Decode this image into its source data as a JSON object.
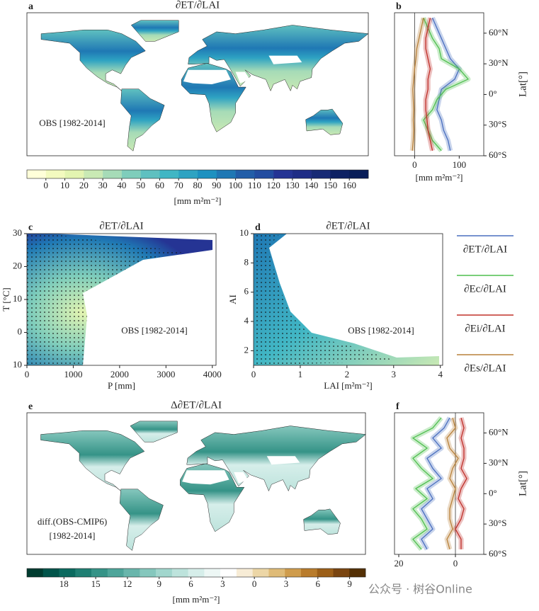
{
  "chart_data": [
    {
      "type": "map",
      "label": "a",
      "title": "∂ET/∂LAI",
      "annotation": "OBS [1982-2014]",
      "colorbar": {
        "lim": [
          -10,
          170
        ],
        "ticks": [
          0,
          10,
          20,
          30,
          40,
          50,
          60,
          70,
          80,
          90,
          100,
          110,
          120,
          130,
          140,
          150,
          160
        ],
        "colors": [
          "#ffffd9",
          "#f3fabf",
          "#e3f4b1",
          "#c9e9b4",
          "#a6dbb7",
          "#7fcdbb",
          "#5fc0c0",
          "#41b6c4",
          "#2ea3c2",
          "#1d91c0",
          "#1f78b4",
          "#225ea8",
          "#234da0",
          "#253494",
          "#1f2d86",
          "#172a75",
          "#0d2163",
          "#081d58"
        ],
        "label": "[mm m²m⁻²]"
      }
    },
    {
      "type": "profile",
      "label": "b",
      "xlim": [
        -45,
        155
      ],
      "xticks": [
        0,
        100
      ],
      "xlabel": "[mm m²m⁻²]",
      "ylim": [
        -60,
        80
      ],
      "yticks": [
        {
          "value": 60,
          "label": "60°N"
        },
        {
          "value": 30,
          "label": "30°N"
        },
        {
          "value": 0,
          "label": "0°"
        },
        {
          "value": -30,
          "label": "30°S"
        },
        {
          "value": -60,
          "label": "60°S"
        }
      ],
      "ylabel": "Lat[°]",
      "lat": [
        -55,
        -45,
        -35,
        -25,
        -15,
        -5,
        5,
        15,
        25,
        35,
        45,
        55,
        65,
        75
      ],
      "series": [
        {
          "name": "∂ET/∂LAI",
          "color": "#4a6fbf",
          "values": [
            80,
            75,
            65,
            60,
            50,
            55,
            60,
            90,
            100,
            80,
            70,
            60,
            50,
            40
          ]
        },
        {
          "name": "∂Ec/∂LAI",
          "color": "#4fbf4f",
          "values": [
            60,
            40,
            30,
            20,
            40,
            50,
            70,
            120,
            100,
            60,
            55,
            40,
            30,
            20
          ]
        },
        {
          "name": "∂Ei/∂LAI",
          "color": "#c0302a",
          "values": [
            40,
            35,
            30,
            28,
            25,
            25,
            30,
            30,
            35,
            30,
            25,
            25,
            30,
            35
          ]
        },
        {
          "name": "∂Es/∂LAI",
          "color": "#b8813a",
          "values": [
            -5,
            -3,
            -2,
            -3,
            -2,
            -3,
            -4,
            -2,
            0,
            3,
            5,
            10,
            15,
            20
          ]
        }
      ]
    },
    {
      "type": "heatmap",
      "label": "c",
      "title": "∂ET/∂LAI",
      "annotation": "OBS [1982-2014]",
      "xlim": [
        0,
        4080
      ],
      "xticks": [
        0,
        1000,
        2000,
        3000,
        4000
      ],
      "xlabel": "P [mm]",
      "ylim": [
        -10,
        30
      ],
      "yticks": [
        {
          "value": -10,
          "label": "10"
        },
        0,
        10,
        20,
        30
      ],
      "ylabel": "T [°C]"
    },
    {
      "type": "heatmap",
      "label": "d",
      "title": "∂ET/∂LAI",
      "annotation": "OBS [1982-2014]",
      "xlim": [
        0,
        4.05
      ],
      "xticks": [
        0,
        1,
        2,
        3,
        4
      ],
      "xlabel": "LAI [m²m⁻²]",
      "ylim": [
        1,
        10
      ],
      "yticks": [
        2,
        4,
        6,
        8,
        10
      ],
      "ylabel": "AI"
    },
    {
      "type": "map",
      "label": "e",
      "title": "Δ∂ET/∂LAI",
      "annotation": [
        "diff.(OBS-CMIP6)",
        "[1982-2014]"
      ],
      "colorbar": {
        "lim": [
          -21.5,
          10.5
        ],
        "ticks": [
          {
            "value": -18,
            "label": "18"
          },
          {
            "value": -15,
            "label": "15"
          },
          {
            "value": -12,
            "label": "12"
          },
          {
            "value": -9,
            "label": "9"
          },
          {
            "value": -6,
            "label": "6"
          },
          {
            "value": -3,
            "label": "3"
          },
          0,
          3,
          6,
          9
        ],
        "colors": [
          "#003c30",
          "#01544a",
          "#0b6a5f",
          "#1f7f73",
          "#359387",
          "#4ea59a",
          "#69b6ac",
          "#85c7bd",
          "#a1d6cd",
          "#bde3dc",
          "#d6eeea",
          "#edf7f5",
          "#ffffff",
          "#f7ecd6",
          "#ecd6a6",
          "#dfbb77",
          "#cf9c4c",
          "#b97c2c",
          "#9c5f18",
          "#7a4510",
          "#543005"
        ],
        "label": "[mm m²m⁻²]"
      }
    },
    {
      "type": "profile",
      "label": "f",
      "xlim": [
        21.5,
        -10
      ],
      "xticks": [
        20,
        0
      ],
      "ylim": [
        -60,
        80
      ],
      "yticks": [
        {
          "value": 60,
          "label": "60°N"
        },
        {
          "value": 30,
          "label": "30°N"
        },
        {
          "value": 0,
          "label": "0°"
        },
        {
          "value": -30,
          "label": "30°S"
        },
        {
          "value": -60,
          "label": "60°S"
        }
      ],
      "ylabel": "Lat[°]",
      "lat": [
        -55,
        -45,
        -35,
        -25,
        -15,
        -5,
        5,
        15,
        25,
        35,
        45,
        55,
        65,
        75
      ],
      "series": [
        {
          "color": "#4a6fbf",
          "values": [
            10,
            12,
            8,
            10,
            12,
            8,
            10,
            5,
            8,
            10,
            5,
            8,
            4,
            2
          ]
        },
        {
          "color": "#4fbf4f",
          "values": [
            12,
            15,
            10,
            12,
            15,
            10,
            14,
            8,
            12,
            15,
            10,
            15,
            8,
            5
          ]
        },
        {
          "color": "#c0302a",
          "values": [
            -2,
            -2,
            0,
            -2,
            -3,
            -1,
            -2,
            -4,
            -2,
            -3,
            -3,
            -2,
            -3,
            -2
          ]
        },
        {
          "color": "#b8813a",
          "values": [
            2,
            3,
            1,
            2,
            2,
            1,
            0,
            2,
            1,
            -1,
            2,
            3,
            0,
            1
          ]
        }
      ]
    }
  ],
  "watermark": "公众号 · 树谷Online"
}
